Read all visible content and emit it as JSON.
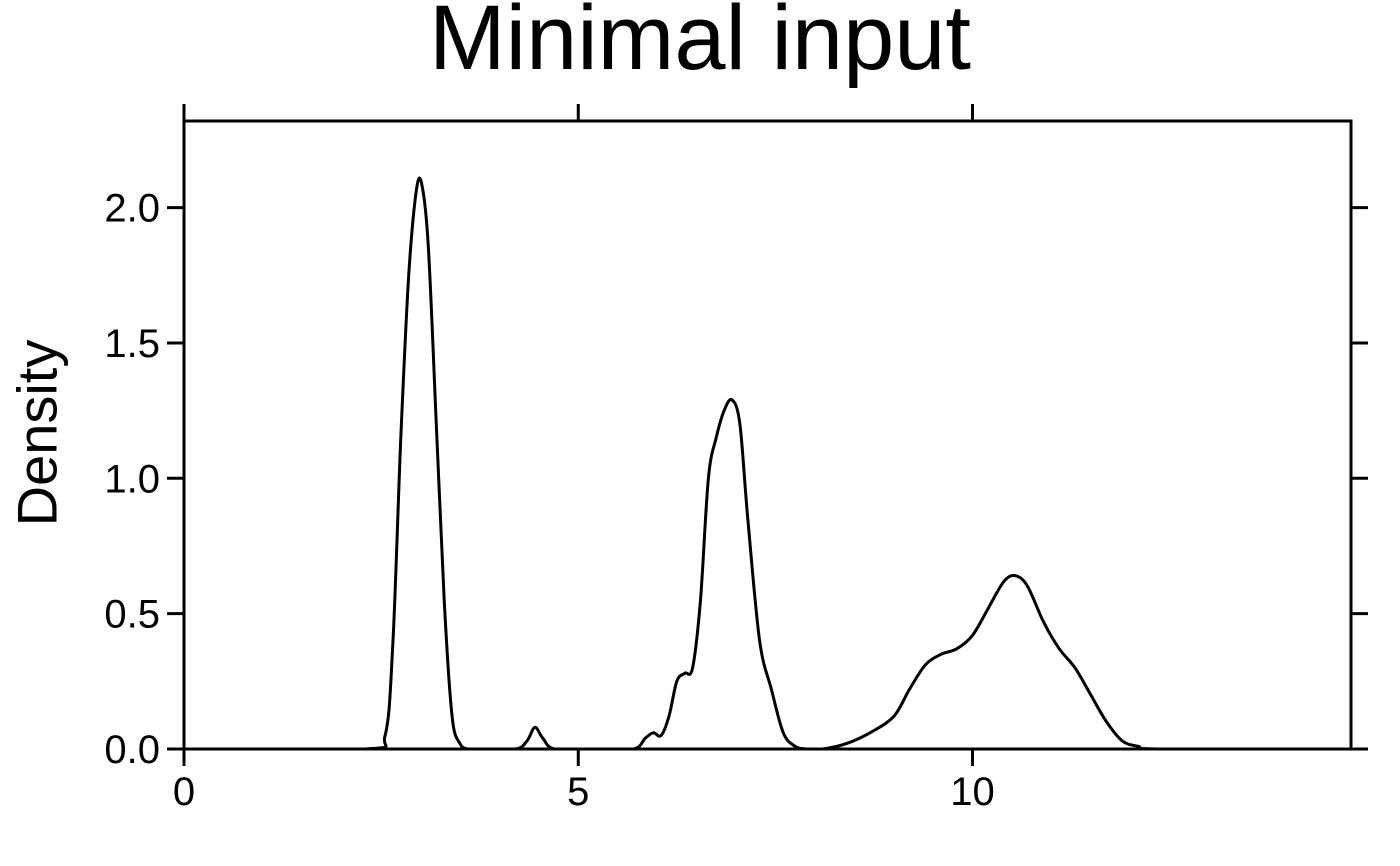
{
  "chart_data": {
    "type": "line",
    "title": "Minimal input",
    "xlabel": "",
    "ylabel": "Density",
    "xlim": [
      0,
      14.8
    ],
    "ylim": [
      0,
      2.32
    ],
    "x_ticks": [
      0,
      5,
      10
    ],
    "x_tick_labels": [
      "0",
      "5",
      "10"
    ],
    "y_ticks": [
      0.0,
      0.5,
      1.0,
      1.5,
      2.0
    ],
    "y_tick_labels": [
      "0.0",
      "0.5",
      "1.0",
      "1.5",
      "2.0"
    ],
    "grid": false,
    "legend": "none",
    "line_color": "#000000",
    "series": [
      {
        "x": [
          0.0,
          2.3,
          2.55,
          2.65,
          2.75,
          2.85,
          2.95,
          3.02,
          3.1,
          3.2,
          3.3,
          3.4,
          3.5,
          3.6,
          3.7,
          4.2,
          4.35,
          4.45,
          4.55,
          4.7,
          5.2,
          5.7,
          5.85,
          5.95,
          6.05,
          6.15,
          6.25,
          6.35,
          6.45,
          6.55,
          6.65,
          6.75,
          6.85,
          6.95,
          7.05,
          7.15,
          7.3,
          7.45,
          7.6,
          7.75,
          7.9,
          8.1,
          8.4,
          8.7,
          9.0,
          9.2,
          9.4,
          9.6,
          9.8,
          10.0,
          10.2,
          10.4,
          10.55,
          10.7,
          10.9,
          11.1,
          11.3,
          11.5,
          11.7,
          11.9,
          12.1,
          12.4,
          14.8
        ],
        "y": [
          0.0,
          0.0,
          0.05,
          0.4,
          1.15,
          1.75,
          2.07,
          2.08,
          1.85,
          1.2,
          0.55,
          0.12,
          0.02,
          0.0,
          0.0,
          0.0,
          0.03,
          0.08,
          0.04,
          0.0,
          0.0,
          0.0,
          0.04,
          0.06,
          0.05,
          0.12,
          0.25,
          0.28,
          0.3,
          0.55,
          1.0,
          1.15,
          1.25,
          1.29,
          1.2,
          0.85,
          0.4,
          0.22,
          0.06,
          0.01,
          0.0,
          0.0,
          0.02,
          0.06,
          0.12,
          0.22,
          0.31,
          0.35,
          0.37,
          0.42,
          0.52,
          0.62,
          0.64,
          0.6,
          0.47,
          0.37,
          0.3,
          0.2,
          0.1,
          0.03,
          0.01,
          0.0,
          0.0
        ]
      }
    ]
  }
}
